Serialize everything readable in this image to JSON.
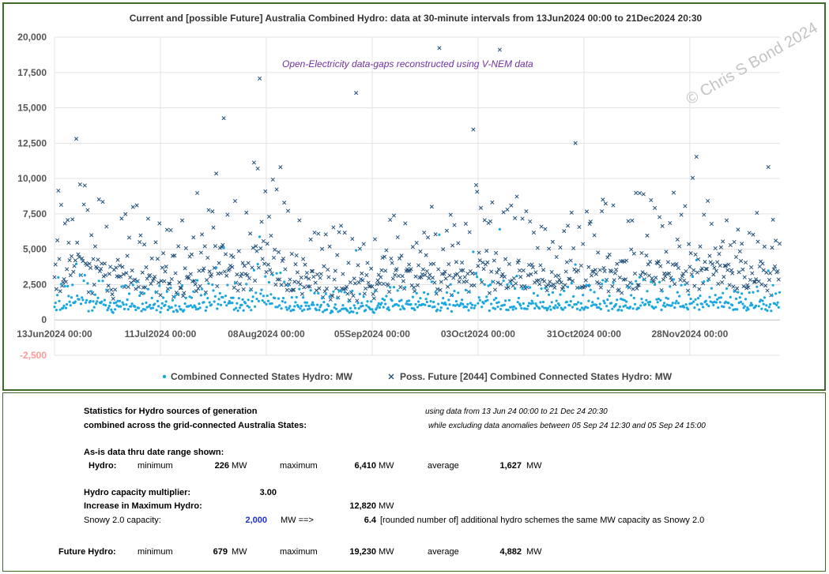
{
  "chart_data": {
    "type": "scatter",
    "title": "Current and [possible Future] Australia Combined Hydro: data at 30-minute intervals from 13Jun2024 00:00 to 21Dec2024 20:30",
    "annotation": "Open-Electricity data-gaps reconstructed using V-NEM data",
    "watermark": "© Chris S Bond 2024",
    "ylim": [
      -2500,
      20000
    ],
    "yticks": [
      "-2,500",
      "0",
      "2,500",
      "5,000",
      "7,500",
      "10,000",
      "12,500",
      "15,000",
      "17,500",
      "20,000"
    ],
    "ytick_values": [
      -2500,
      0,
      2500,
      5000,
      7500,
      10000,
      12500,
      15000,
      17500,
      20000
    ],
    "xrange_days": [
      0,
      191.85
    ],
    "xticks": [
      "13Jun2024 00:00",
      "11Jul2024 00:00",
      "08Aug2024 00:00",
      "05Sep2024 00:00",
      "03Oct2024 00:00",
      "31Oct2024 00:00",
      "28Nov2024 00:00"
    ],
    "xtick_days": [
      0,
      28,
      56,
      84,
      112,
      140,
      168
    ],
    "grid": true,
    "legend_position": "bottom",
    "series": [
      {
        "name": "Combined Connected States Hydro: MW",
        "marker": "dot",
        "color": "#1aa7e0",
        "min": 226,
        "max": 6410,
        "average": 1627
      },
      {
        "name": "Poss. Future [2044] Combined Connected States Hydro: MW",
        "marker": "x",
        "color": "#1f4e79",
        "min": 679,
        "max": 19230,
        "average": 4882
      }
    ],
    "daily_pattern_mw": [
      [
        0,
        1500,
        4500
      ],
      [
        3,
        1300,
        3900
      ],
      [
        6,
        2600,
        7800
      ],
      [
        9,
        1400,
        4200
      ],
      [
        12,
        1900,
        5700
      ],
      [
        15,
        1100,
        3300
      ],
      [
        18,
        1600,
        4800
      ],
      [
        21,
        1500,
        4500
      ],
      [
        24,
        1200,
        3600
      ],
      [
        27,
        1300,
        3900
      ],
      [
        30,
        1500,
        4500
      ],
      [
        33,
        1200,
        3600
      ],
      [
        36,
        1700,
        5100
      ],
      [
        39,
        1500,
        4500
      ],
      [
        42,
        2000,
        6000
      ],
      [
        45,
        1900,
        5700
      ],
      [
        48,
        1500,
        4500
      ],
      [
        51,
        1400,
        4200
      ],
      [
        54,
        2300,
        6900
      ],
      [
        57,
        2100,
        6300
      ],
      [
        60,
        1800,
        5400
      ],
      [
        63,
        1400,
        4200
      ],
      [
        66,
        1200,
        3600
      ],
      [
        69,
        1400,
        4200
      ],
      [
        72,
        1200,
        3600
      ],
      [
        75,
        1100,
        3300
      ],
      [
        78,
        1200,
        3600
      ],
      [
        81,
        1200,
        3600
      ],
      [
        84,
        1100,
        3300
      ],
      [
        87,
        1400,
        4200
      ],
      [
        90,
        1500,
        4500
      ],
      [
        93,
        1500,
        4500
      ],
      [
        96,
        1400,
        4200
      ],
      [
        99,
        1500,
        4500
      ],
      [
        102,
        1400,
        4200
      ],
      [
        105,
        1400,
        4200
      ],
      [
        108,
        1500,
        4500
      ],
      [
        111,
        1600,
        4800
      ],
      [
        114,
        1700,
        5100
      ],
      [
        117,
        1500,
        4500
      ],
      [
        120,
        1500,
        4500
      ],
      [
        123,
        1400,
        4200
      ],
      [
        126,
        1500,
        4500
      ],
      [
        129,
        1400,
        4200
      ],
      [
        132,
        1400,
        4200
      ],
      [
        135,
        1500,
        4500
      ],
      [
        138,
        1500,
        4500
      ],
      [
        141,
        1400,
        4200
      ],
      [
        144,
        1500,
        4500
      ],
      [
        147,
        1500,
        4500
      ],
      [
        150,
        1400,
        4200
      ],
      [
        153,
        1600,
        4800
      ],
      [
        156,
        1600,
        4800
      ],
      [
        159,
        1500,
        4500
      ],
      [
        162,
        1600,
        4800
      ],
      [
        165,
        1700,
        5100
      ],
      [
        168,
        1600,
        4800
      ],
      [
        171,
        1700,
        5100
      ],
      [
        174,
        1600,
        4800
      ],
      [
        177,
        1600,
        4800
      ],
      [
        180,
        1600,
        4800
      ],
      [
        183,
        1500,
        4500
      ],
      [
        186,
        1500,
        4500
      ],
      [
        189,
        1300,
        3900
      ],
      [
        191.85,
        1300,
        3900
      ]
    ]
  },
  "legend": {
    "current_label": "Combined Connected States Hydro: MW",
    "future_label": "Poss. Future [2044] Combined Connected States Hydro: MW"
  },
  "stats": {
    "heading_line1": "Statistics for Hydro sources of generation",
    "heading_line2": "combined across the grid-connected Australia States:",
    "range_note1": "using data from 13 Jun 24 00:00 to 21 Dec 24 20:30",
    "range_note2": "while excluding data anomalies between 05 Sep 24 12:30 and 05 Sep 24 15:00",
    "asis_heading": "As-is data thru date range shown:",
    "hydro_label": "Hydro:",
    "min_label": "minimum",
    "max_label": "maximum",
    "avg_label": "average",
    "unit": "MW",
    "hydro_min": "226",
    "hydro_max": "6,410",
    "hydro_avg": "1,627",
    "multiplier_label": "Hydro capacity multiplier:",
    "multiplier_value": "3.00",
    "increase_label": "Increase in Maximum Hydro:",
    "increase_value": "12,820",
    "snowy_label": "Snowy 2.0 capacity:",
    "snowy_value": "2,000",
    "snowy_arrow": "MW ==>",
    "schemes_value": "6.4",
    "schemes_text": "[rounded number of] additional hydro schemes the same MW capacity as Snowy 2.0",
    "future_label": "Future Hydro:",
    "future_min": "679",
    "future_max": "19,230",
    "future_avg": "4,882"
  },
  "colors": {
    "current": "#1aa7e0",
    "future": "#1f4e79",
    "frame": "#3f6b2a",
    "annotation": "#7030a0",
    "snowy_value": "#1f2fd0"
  }
}
